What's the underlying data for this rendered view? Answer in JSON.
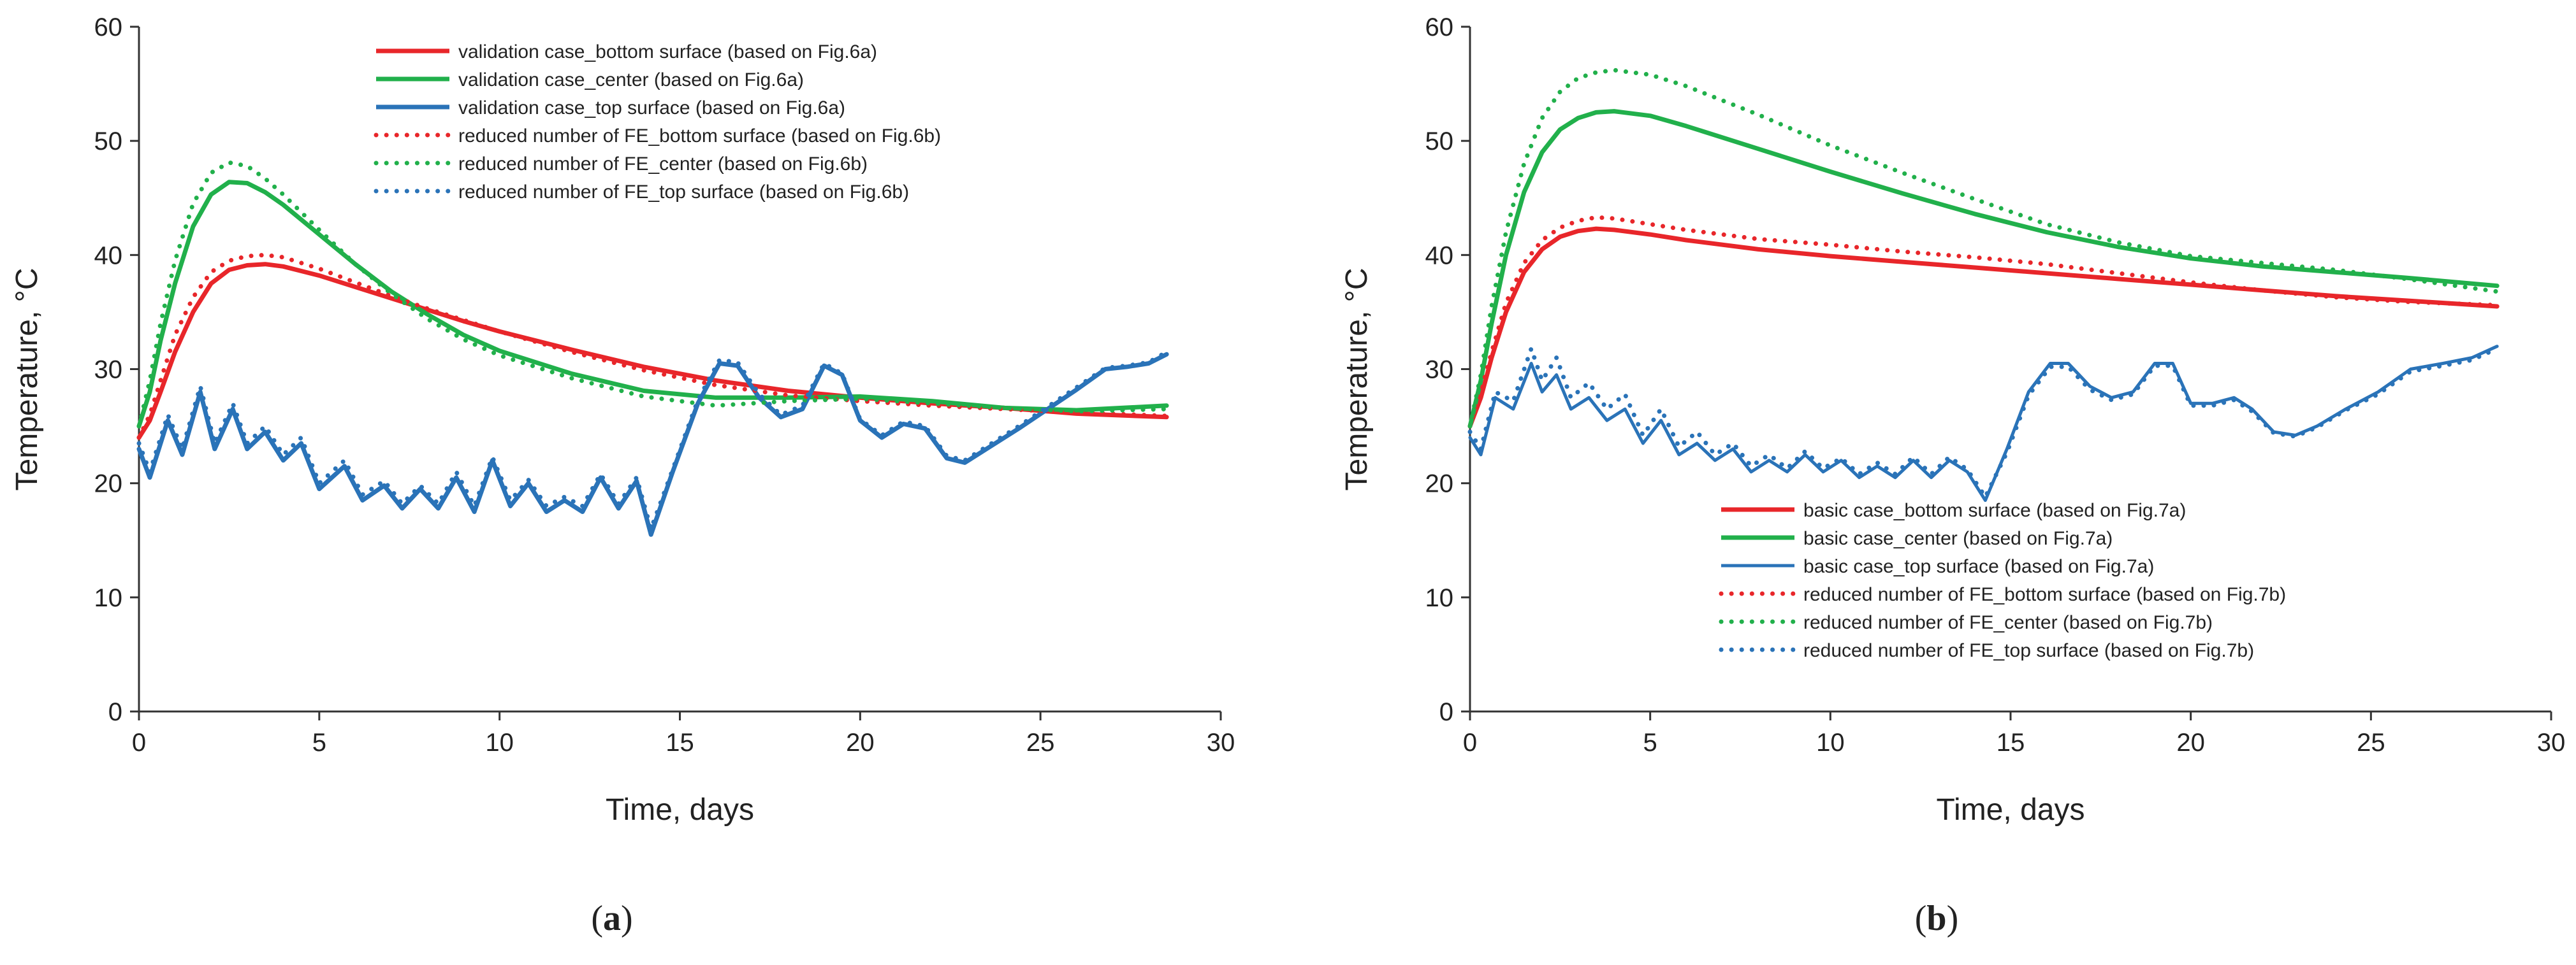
{
  "colors": {
    "red": "#e8262a",
    "green": "#21b04b",
    "blue": "#2a73b8",
    "axis": "#333333",
    "text": "#222222"
  },
  "chart_data": [
    {
      "type": "line",
      "caption_letter": "a",
      "caption_open": "(",
      "caption_close": ")",
      "xlabel": "Time, days",
      "ylabel": "Temperature, °C",
      "xlim": [
        0,
        30
      ],
      "ylim": [
        0,
        60
      ],
      "xticks": [
        0,
        5,
        10,
        15,
        20,
        25,
        30
      ],
      "yticks": [
        0,
        10,
        20,
        30,
        40,
        50,
        60
      ],
      "xtick_labels": [
        "0",
        "5",
        "10",
        "15",
        "20",
        "25",
        "30"
      ],
      "ytick_labels": [
        "0",
        "10",
        "20",
        "30",
        "40",
        "50",
        "60"
      ],
      "grid": false,
      "legend": "top-right",
      "series": [
        {
          "name": "validation case_bottom surface (based on Fig.6a)",
          "color": "red",
          "style": "solid",
          "x": [
            0,
            0.3,
            0.6,
            1,
            1.5,
            2,
            2.5,
            3,
            3.5,
            4,
            5,
            6,
            7,
            8,
            9,
            10,
            12,
            14,
            16,
            18,
            20,
            22,
            24,
            26,
            28.5
          ],
          "y": [
            24,
            25.5,
            28,
            31.5,
            35,
            37.5,
            38.7,
            39.1,
            39.2,
            39,
            38.2,
            37.2,
            36.2,
            35.2,
            34.2,
            33.3,
            31.7,
            30.2,
            29,
            28.1,
            27.5,
            27,
            26.6,
            26.1,
            25.8
          ]
        },
        {
          "name": "validation case_center (based on Fig.6a)",
          "color": "green",
          "style": "solid",
          "x": [
            0,
            0.3,
            0.6,
            1,
            1.5,
            2,
            2.5,
            3,
            3.5,
            4,
            5,
            6,
            7,
            8,
            9,
            10,
            12,
            14,
            16,
            18,
            20,
            22,
            24,
            26,
            28.5
          ],
          "y": [
            25,
            28,
            32.5,
            37.5,
            42.5,
            45.3,
            46.4,
            46.3,
            45.5,
            44.4,
            41.8,
            39.2,
            36.8,
            34.8,
            33,
            31.6,
            29.6,
            28.1,
            27.5,
            27.5,
            27.6,
            27.2,
            26.6,
            26.4,
            26.8
          ]
        },
        {
          "name": "validation case_top surface (based on Fig.6a)",
          "color": "blue",
          "style": "solid",
          "x": [
            0,
            0.3,
            0.8,
            1.2,
            1.7,
            2.1,
            2.6,
            3,
            3.5,
            4,
            4.5,
            5,
            5.7,
            6.2,
            6.8,
            7.3,
            7.8,
            8.3,
            8.8,
            9.3,
            9.8,
            10.3,
            10.8,
            11.3,
            11.8,
            12.3,
            12.8,
            13.3,
            13.8,
            14.2,
            14.8,
            15.5,
            16.1,
            16.6,
            17.2,
            17.8,
            18.4,
            19,
            19.5,
            20,
            20.6,
            21.2,
            21.8,
            22.4,
            22.9,
            23.6,
            24.4,
            25.2,
            26,
            26.8,
            27.4,
            28,
            28.5
          ],
          "y": [
            23,
            20.5,
            25.5,
            22.5,
            28,
            23,
            26.5,
            23,
            24.5,
            22,
            23.5,
            19.5,
            21.5,
            18.5,
            19.8,
            17.8,
            19.5,
            17.8,
            20.5,
            17.5,
            22,
            18,
            20,
            17.5,
            18.5,
            17.5,
            20.5,
            17.8,
            20.2,
            15.5,
            21,
            27,
            30.5,
            30.3,
            27.5,
            25.8,
            26.5,
            30.3,
            29.5,
            25.5,
            24,
            25.2,
            24.8,
            22.2,
            21.8,
            23.2,
            24.8,
            26.5,
            28.2,
            30,
            30.2,
            30.5,
            31.3
          ]
        },
        {
          "name": "reduced number of FE_bottom surface (based on Fig.6b)",
          "color": "red",
          "style": "dotted",
          "x": [
            0,
            0.3,
            0.6,
            1,
            1.5,
            2,
            2.5,
            3,
            3.5,
            4,
            5,
            6,
            7,
            8,
            9,
            10,
            12,
            14,
            16,
            18,
            20,
            22,
            24,
            26,
            28.5
          ],
          "y": [
            24,
            26,
            29,
            33,
            36.3,
            38.5,
            39.5,
            39.9,
            40,
            39.8,
            38.8,
            37.6,
            36.4,
            35.3,
            34.3,
            33.3,
            31.5,
            29.9,
            28.6,
            27.7,
            27.2,
            26.8,
            26.5,
            26.2,
            25.9
          ]
        },
        {
          "name": "reduced number of FE_center (based on Fig.6b)",
          "color": "green",
          "style": "dotted",
          "x": [
            0,
            0.3,
            0.6,
            1,
            1.5,
            2,
            2.5,
            3,
            3.5,
            4,
            5,
            6,
            7,
            8,
            9,
            10,
            12,
            14,
            16,
            18,
            20,
            22,
            24,
            26,
            28.5
          ],
          "y": [
            25,
            29,
            34,
            39.5,
            44.5,
            47.2,
            48.1,
            47.8,
            46.7,
            45.3,
            42.2,
            39.2,
            36.6,
            34.4,
            32.6,
            31.2,
            29.2,
            27.6,
            26.8,
            27.2,
            27.4,
            27,
            26.6,
            26.3,
            26.5
          ]
        },
        {
          "name": "reduced number of FE_top surface (based on Fig.6b)",
          "color": "blue",
          "style": "dotted",
          "x": [
            0,
            0.3,
            0.8,
            1.2,
            1.7,
            2.1,
            2.6,
            3,
            3.5,
            4,
            4.5,
            5,
            5.7,
            6.2,
            6.8,
            7.3,
            7.8,
            8.3,
            8.8,
            9.3,
            9.8,
            10.3,
            10.8,
            11.3,
            11.8,
            12.3,
            12.8,
            13.3,
            13.8,
            14.2,
            14.8,
            15.5,
            16.1,
            16.6,
            17.2,
            17.8,
            18.4,
            19,
            19.5,
            20,
            20.6,
            21.2,
            21.8,
            22.4,
            22.9,
            23.6,
            24.4,
            25.2,
            26,
            26.8,
            27.4,
            28,
            28.5
          ],
          "y": [
            23.5,
            21,
            26,
            23,
            28.5,
            23.5,
            27,
            23.5,
            25,
            22.5,
            24,
            20,
            22,
            19,
            20.2,
            18.2,
            19.8,
            18.2,
            21,
            18,
            22.3,
            18.5,
            20.3,
            18,
            18.8,
            18,
            20.8,
            18.2,
            20.5,
            16,
            21.2,
            27.3,
            30.8,
            30.6,
            27.8,
            26,
            26.8,
            30.5,
            29.6,
            25.6,
            24.2,
            25.4,
            25,
            22.4,
            22,
            23.4,
            25,
            26.7,
            28.4,
            30.1,
            30.3,
            30.6,
            31.5
          ]
        }
      ]
    },
    {
      "type": "line",
      "caption_letter": "b",
      "caption_open": "(",
      "caption_close": ")",
      "xlabel": "Time, days",
      "ylabel": "Temperature, °C",
      "xlim": [
        0,
        30
      ],
      "ylim": [
        0,
        60
      ],
      "xticks": [
        0,
        5,
        10,
        15,
        20,
        25,
        30
      ],
      "yticks": [
        0,
        10,
        20,
        30,
        40,
        50,
        60
      ],
      "xtick_labels": [
        "0",
        "5",
        "10",
        "15",
        "20",
        "25",
        "30"
      ],
      "ytick_labels": [
        "0",
        "10",
        "20",
        "30",
        "40",
        "50",
        "60"
      ],
      "grid": false,
      "legend": "bottom-right",
      "series": [
        {
          "name": "basic case_bottom surface (based on Fig.7a)",
          "color": "red",
          "style": "solid",
          "x": [
            0,
            0.3,
            0.6,
            1,
            1.5,
            2,
            2.5,
            3,
            3.5,
            4,
            5,
            6,
            8,
            10,
            12,
            14,
            16,
            18,
            20,
            22,
            24,
            26,
            28.5
          ],
          "y": [
            25,
            27.5,
            31,
            35,
            38.5,
            40.5,
            41.6,
            42.1,
            42.3,
            42.2,
            41.8,
            41.3,
            40.5,
            39.9,
            39.4,
            38.9,
            38.4,
            37.9,
            37.4,
            36.9,
            36.4,
            36,
            35.5
          ]
        },
        {
          "name": "basic case_center (based on Fig.7a)",
          "color": "green",
          "style": "solid",
          "x": [
            0,
            0.3,
            0.6,
            1,
            1.5,
            2,
            2.5,
            3,
            3.5,
            4,
            5,
            6,
            8,
            10,
            12,
            14,
            16,
            18,
            20,
            22,
            24,
            26,
            28.5
          ],
          "y": [
            25,
            29,
            34,
            40,
            45.5,
            49,
            51,
            52,
            52.5,
            52.6,
            52.2,
            51.3,
            49.3,
            47.3,
            45.4,
            43.6,
            42,
            40.7,
            39.7,
            39,
            38.5,
            38,
            37.3
          ]
        },
        {
          "name": "basic case_top surface (based on Fig.7a)",
          "color": "blue",
          "style": "solid",
          "x": [
            0,
            0.3,
            0.7,
            1.2,
            1.7,
            2,
            2.4,
            2.8,
            3.3,
            3.8,
            4.3,
            4.8,
            5.3,
            5.8,
            6.3,
            6.8,
            7.3,
            7.8,
            8.3,
            8.8,
            9.3,
            9.8,
            10.3,
            10.8,
            11.3,
            11.8,
            12.3,
            12.8,
            13.3,
            13.8,
            14.3,
            14.9,
            15.5,
            16.1,
            16.6,
            17.2,
            17.8,
            18.4,
            19,
            19.5,
            20,
            20.6,
            21.2,
            21.7,
            22.3,
            22.9,
            23.5,
            24.3,
            25.2,
            26.1,
            27,
            27.8,
            28.5
          ],
          "y": [
            24,
            22.5,
            27.5,
            26.5,
            30.5,
            28,
            29.5,
            26.5,
            27.5,
            25.5,
            26.5,
            23.5,
            25.5,
            22.5,
            23.5,
            22,
            23,
            21,
            22,
            21,
            22.5,
            21,
            22,
            20.5,
            21.5,
            20.5,
            22,
            20.5,
            22,
            21,
            18.5,
            23,
            28,
            30.5,
            30.5,
            28.5,
            27.5,
            28,
            30.5,
            30.5,
            27,
            27,
            27.5,
            26.5,
            24.5,
            24.2,
            25,
            26.5,
            28,
            30,
            30.5,
            31,
            32
          ]
        },
        {
          "name": "reduced number of FE_bottom surface (based on Fig.7b)",
          "color": "red",
          "style": "dotted",
          "x": [
            0,
            0.3,
            0.6,
            1,
            1.5,
            2,
            2.5,
            3,
            3.5,
            4,
            5,
            6,
            8,
            10,
            12,
            14,
            16,
            18,
            20,
            22,
            24,
            26,
            28.5
          ],
          "y": [
            25,
            28,
            31.5,
            35.8,
            39.3,
            41.3,
            42.4,
            43,
            43.3,
            43.2,
            42.7,
            42.2,
            41.4,
            40.9,
            40.3,
            39.8,
            39.2,
            38.4,
            37.6,
            36.9,
            36.3,
            35.9,
            35.6
          ]
        },
        {
          "name": "reduced number of FE_center (based on Fig.7b)",
          "color": "green",
          "style": "dotted",
          "x": [
            0,
            0.3,
            0.6,
            1,
            1.5,
            2,
            2.5,
            3,
            3.5,
            4,
            5,
            6,
            8,
            10,
            12,
            14,
            16,
            18,
            20,
            22,
            24,
            26,
            28.5
          ],
          "y": [
            25,
            29.5,
            35.5,
            42,
            48,
            52,
            54.3,
            55.5,
            56,
            56.2,
            55.8,
            54.8,
            52.3,
            49.6,
            47.2,
            44.9,
            42.7,
            41.1,
            39.9,
            39.3,
            38.7,
            37.9,
            36.8
          ]
        },
        {
          "name": "reduced number of FE_top surface (based on Fig.7b)",
          "color": "blue",
          "style": "dotted",
          "x": [
            0,
            0.3,
            0.7,
            1.2,
            1.7,
            2,
            2.4,
            2.8,
            3.3,
            3.8,
            4.3,
            4.8,
            5.3,
            5.8,
            6.3,
            6.8,
            7.3,
            7.8,
            8.3,
            8.8,
            9.3,
            9.8,
            10.3,
            10.8,
            11.3,
            11.8,
            12.3,
            12.8,
            13.3,
            13.8,
            14.3,
            14.9,
            15.5,
            16.1,
            16.6,
            17.2,
            17.8,
            18.4,
            19,
            19.5,
            20,
            20.6,
            21.2,
            21.7,
            22.3,
            22.9,
            23.5,
            24.3,
            25.2,
            26.1,
            27,
            27.8,
            28.5
          ],
          "y": [
            24.5,
            23,
            28,
            27.2,
            31.8,
            29,
            31,
            27.5,
            28.8,
            26.5,
            27.8,
            24.2,
            26.5,
            23.2,
            24.5,
            22.5,
            23.5,
            21.5,
            22.5,
            21.3,
            22.8,
            21.3,
            22.2,
            20.8,
            21.8,
            20.8,
            22.3,
            20.8,
            22.3,
            21.2,
            18.8,
            22.7,
            27.7,
            30.2,
            30.2,
            28.2,
            27.3,
            27.8,
            30.3,
            30.3,
            26.8,
            26.8,
            27.3,
            26.3,
            24.4,
            24.1,
            24.9,
            26.4,
            27.8,
            29.8,
            30.3,
            30.8,
            31.8
          ]
        }
      ]
    }
  ]
}
